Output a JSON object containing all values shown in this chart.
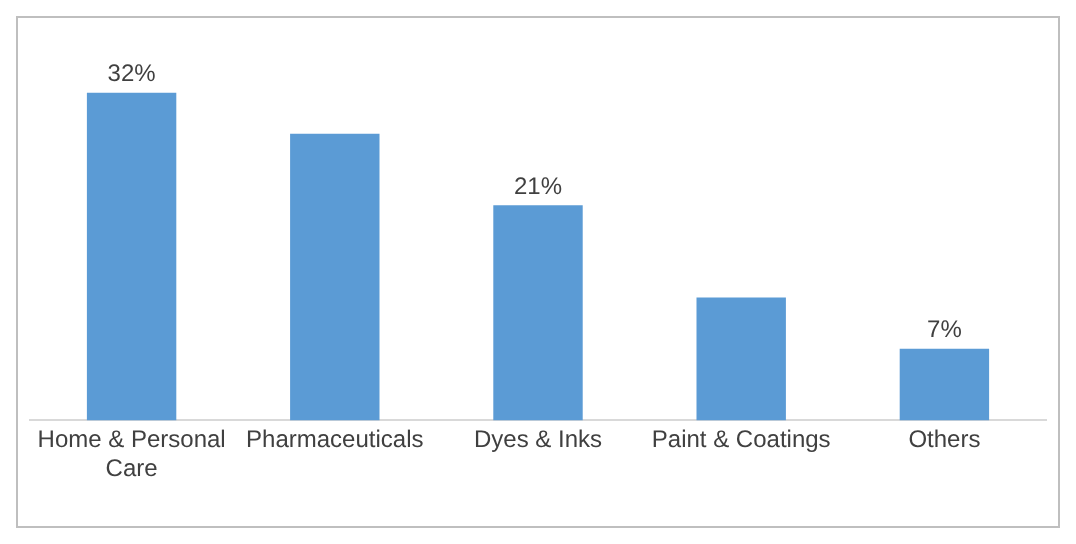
{
  "chart_data": {
    "type": "bar",
    "categories": [
      "Home & Personal Care",
      "Pharmaceuticals",
      "Dyes & Inks",
      "Paint & Coatings",
      "Others"
    ],
    "values": [
      32,
      28,
      21,
      12,
      7
    ],
    "value_labels": [
      "32%",
      null,
      "21%",
      null,
      "7%"
    ],
    "color": "#5b9bd5",
    "grid": false,
    "legend": false
  }
}
